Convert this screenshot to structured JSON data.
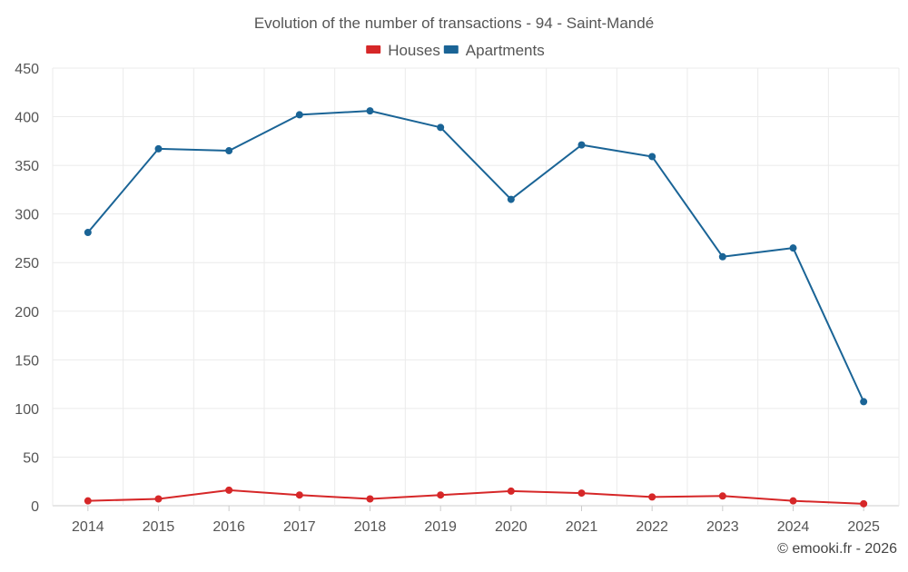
{
  "chart_data": {
    "type": "line",
    "title": "Evolution of the number of transactions - 94 - Saint-Mandé",
    "categories": [
      "2014",
      "2015",
      "2016",
      "2017",
      "2018",
      "2019",
      "2020",
      "2021",
      "2022",
      "2023",
      "2024",
      "2025"
    ],
    "series": [
      {
        "name": "Houses",
        "color": "#d62728",
        "values": [
          5,
          7,
          16,
          11,
          7,
          11,
          15,
          13,
          9,
          10,
          5,
          2
        ]
      },
      {
        "name": "Apartments",
        "color": "#1a6496",
        "values": [
          281,
          367,
          365,
          402,
          406,
          389,
          315,
          371,
          359,
          256,
          265,
          107
        ]
      }
    ],
    "ylim": [
      0,
      450
    ],
    "yticks": [
      0,
      50,
      100,
      150,
      200,
      250,
      300,
      350,
      400,
      450
    ],
    "xlabel": "",
    "ylabel": "",
    "grid": true,
    "legend_position": "top-center",
    "credit": "© emooki.fr - 2026"
  },
  "colors": {
    "grid": "#ebebeb",
    "axis": "#cccccc",
    "text": "#555555"
  }
}
